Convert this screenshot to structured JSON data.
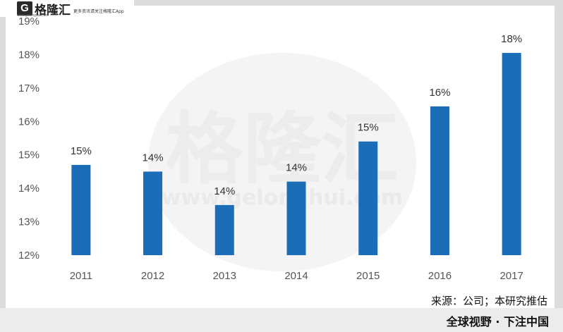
{
  "logo": {
    "mark": "G",
    "name": "格隆汇",
    "site": "www.gelonghui.com",
    "tagline": "更多资讯请关注格隆汇App"
  },
  "source_note": "来源：公司；本研究推估",
  "slogan": "全球视野 · 下注中国",
  "watermark": {
    "text": "格隆汇",
    "url": "www.gelonghui.com"
  },
  "colors": {
    "bar": "#1a6db6",
    "background": "#ffffff",
    "page": "#dcdcdc"
  },
  "chart_data": {
    "type": "bar",
    "categories": [
      "2011",
      "2012",
      "2013",
      "2014",
      "2015",
      "2016",
      "2017"
    ],
    "values": [
      14.7,
      14.5,
      13.5,
      14.2,
      15.4,
      16.45,
      18.05
    ],
    "data_labels": [
      "15%",
      "14%",
      "14%",
      "14%",
      "15%",
      "16%",
      "18%"
    ],
    "ylim": [
      12,
      19
    ],
    "yticks": [
      "12%",
      "13%",
      "14%",
      "15%",
      "16%",
      "17%",
      "18%",
      "19%"
    ],
    "title": "",
    "xlabel": "",
    "ylabel": "",
    "grid": false,
    "legend": "none"
  }
}
